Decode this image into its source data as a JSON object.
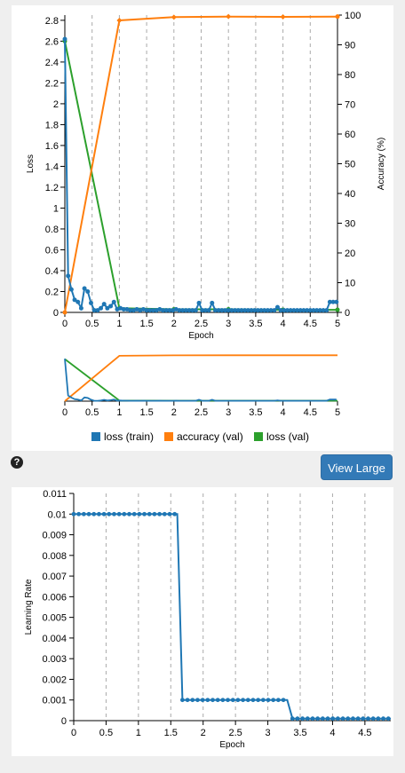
{
  "view_large_label": "View Large",
  "help_icon_glyph": "?",
  "chart_data": [
    {
      "type": "line",
      "name": "training-curves",
      "xlabel": "Epoch",
      "ylabel_left": "Loss",
      "ylabel_right": "Accuracy (%)",
      "xlim": [
        0,
        5
      ],
      "ylim_left": [
        0,
        2.85
      ],
      "ylim_right": [
        0,
        100
      ],
      "x_ticks": [
        "0",
        "0.5",
        "1",
        "1.5",
        "2",
        "2.5",
        "3",
        "3.5",
        "4",
        "4.5",
        "5"
      ],
      "y_ticks_left": [
        "0",
        "0.2",
        "0.4",
        "0.6",
        "0.8",
        "1",
        "1.2",
        "1.4",
        "1.6",
        "1.8",
        "2",
        "2.2",
        "2.4",
        "2.6",
        "2.8"
      ],
      "y_ticks_right": [
        "0",
        "10",
        "20",
        "30",
        "40",
        "50",
        "60",
        "70",
        "80",
        "90",
        "100"
      ],
      "grid": "vertical-dashed",
      "legend_position": "bottom",
      "series": [
        {
          "name": "loss (train)",
          "axis": "left",
          "color": "#1f77b4",
          "x": [
            0,
            0.06,
            0.12,
            0.18,
            0.24,
            0.3,
            0.36,
            0.42,
            0.48,
            0.54,
            0.6,
            0.66,
            0.72,
            0.78,
            0.84,
            0.9,
            0.96,
            1.02,
            1.08,
            1.14,
            1.2,
            1.26,
            1.32,
            1.38,
            1.44,
            1.5,
            1.56,
            1.62,
            1.68,
            1.74,
            1.8,
            1.86,
            1.92,
            1.98,
            2.04,
            2.1,
            2.16,
            2.22,
            2.28,
            2.34,
            2.4,
            2.46,
            2.52,
            2.58,
            2.64,
            2.7,
            2.76,
            2.82,
            2.88,
            2.94,
            3.0,
            3.06,
            3.12,
            3.18,
            3.24,
            3.3,
            3.36,
            3.42,
            3.48,
            3.54,
            3.6,
            3.66,
            3.72,
            3.78,
            3.84,
            3.9,
            3.96,
            4.02,
            4.08,
            4.14,
            4.2,
            4.26,
            4.32,
            4.38,
            4.44,
            4.5,
            4.56,
            4.62,
            4.68,
            4.74,
            4.8,
            4.86,
            4.92,
            4.98
          ],
          "y": [
            2.62,
            0.35,
            0.22,
            0.12,
            0.1,
            0.04,
            0.23,
            0.2,
            0.09,
            0.02,
            0.02,
            0.04,
            0.08,
            0.04,
            0.06,
            0.1,
            0.03,
            0.04,
            0.03,
            0.03,
            0.02,
            0.02,
            0.03,
            0.02,
            0.03,
            0.02,
            0.02,
            0.02,
            0.02,
            0.03,
            0.02,
            0.02,
            0.02,
            0.02,
            0.03,
            0.02,
            0.02,
            0.02,
            0.02,
            0.02,
            0.02,
            0.09,
            0.02,
            0.02,
            0.02,
            0.09,
            0.02,
            0.02,
            0.02,
            0.02,
            0.02,
            0.02,
            0.02,
            0.02,
            0.02,
            0.02,
            0.02,
            0.02,
            0.02,
            0.02,
            0.02,
            0.02,
            0.02,
            0.02,
            0.02,
            0.05,
            0.02,
            0.02,
            0.02,
            0.02,
            0.02,
            0.02,
            0.02,
            0.02,
            0.02,
            0.02,
            0.02,
            0.02,
            0.02,
            0.02,
            0.02,
            0.1,
            0.1,
            0.1
          ]
        },
        {
          "name": "accuracy (val)",
          "axis": "right",
          "color": "#ff7f0e",
          "x": [
            0,
            1,
            2,
            3,
            4,
            5
          ],
          "y": [
            0,
            98.2,
            99.3,
            99.5,
            99.4,
            99.5
          ]
        },
        {
          "name": "loss (val)",
          "axis": "left",
          "color": "#2ca02c",
          "x": [
            0,
            1,
            2,
            3,
            4,
            5
          ],
          "y": [
            2.6,
            0.04,
            0.03,
            0.03,
            0.025,
            0.025
          ]
        }
      ]
    },
    {
      "type": "line",
      "name": "learning-rate",
      "xlabel": "Epoch",
      "ylabel": "Learning Rate",
      "xlim": [
        0,
        4.9
      ],
      "ylim": [
        0,
        0.011
      ],
      "x_ticks": [
        "0",
        "0.5",
        "1",
        "1.5",
        "2",
        "2.5",
        "3",
        "3.5",
        "4",
        "4.5"
      ],
      "y_ticks": [
        "0",
        "0.001",
        "0.002",
        "0.003",
        "0.004",
        "0.005",
        "0.006",
        "0.007",
        "0.008",
        "0.009",
        "0.01",
        "0.011"
      ],
      "grid": "vertical-dashed",
      "series": [
        {
          "name": "",
          "color": "#1f77b4",
          "step_points": [
            [
              0,
              0.01
            ],
            [
              1.6,
              0.01
            ],
            [
              1.68,
              0.001
            ],
            [
              3.3,
              0.001
            ],
            [
              3.38,
              0.0001
            ],
            [
              4.9,
              0.0001
            ]
          ],
          "marker_spacing": 0.078
        }
      ]
    }
  ]
}
